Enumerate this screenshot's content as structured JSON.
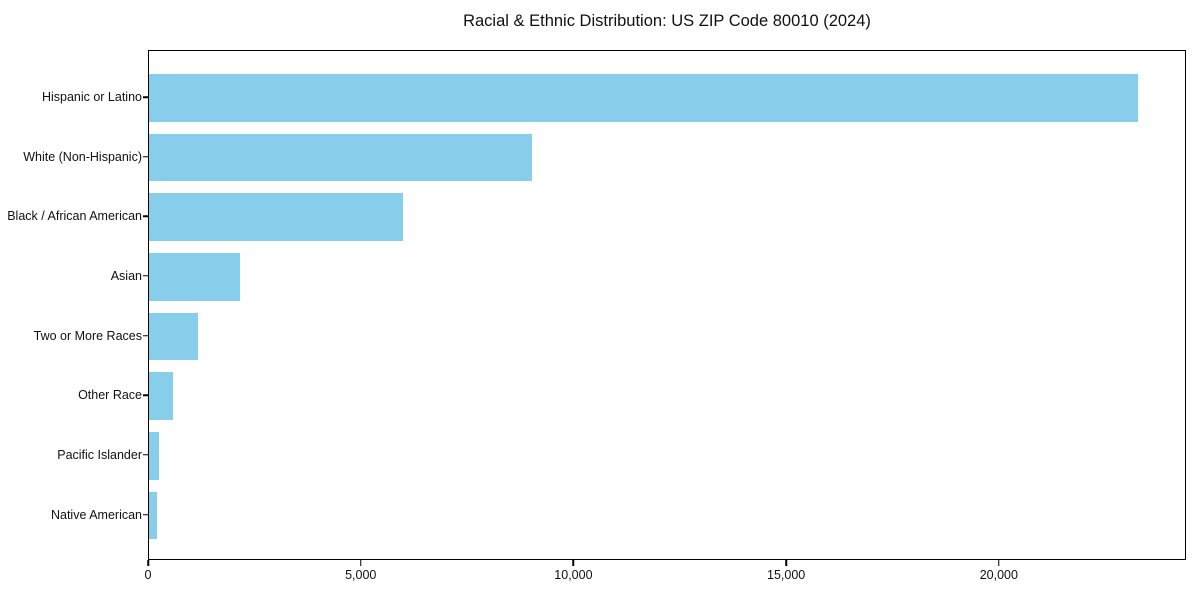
{
  "chart_data": {
    "type": "bar",
    "orientation": "horizontal",
    "title": "Racial & Ethnic Distribution: US ZIP Code 80010 (2024)",
    "categories": [
      "Hispanic or Latino",
      "White (Non-Hispanic)",
      "Black / African American",
      "Asian",
      "Two or More Races",
      "Other Race",
      "Pacific Islander",
      "Native American"
    ],
    "values": [
      23250,
      9000,
      5960,
      2150,
      1150,
      560,
      240,
      190
    ],
    "xlabel": "",
    "ylabel": "",
    "xlim": [
      0,
      24400
    ],
    "xticks": [
      0,
      5000,
      10000,
      15000,
      20000
    ],
    "xtick_labels": [
      "0",
      "5,000",
      "10,000",
      "15,000",
      "20,000"
    ],
    "bar_color": "#87CEEB",
    "grid": false,
    "legend": null
  }
}
